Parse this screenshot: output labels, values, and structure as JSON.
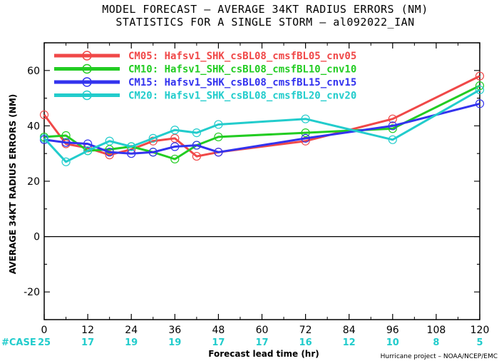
{
  "chart_data": {
    "type": "line",
    "title_line1": "MODEL FORECAST – AVERAGE 34KT RADIUS ERRORS (NM)",
    "title_line2": "STATISTICS FOR A SINGLE STORM – al092022_IAN",
    "xlabel": "Forecast lead time (hr)",
    "ylabel": "AVERAGE 34KT RADIUS ERRORS (NM)",
    "xlim": [
      0,
      120
    ],
    "ylim": [
      -30,
      70
    ],
    "x_ticks": [
      0,
      12,
      24,
      36,
      48,
      60,
      72,
      84,
      96,
      108,
      120
    ],
    "y_ticks": [
      -20,
      0,
      20,
      40,
      60
    ],
    "case_label": "#CASE",
    "case_counts": [
      25,
      17,
      19,
      19,
      17,
      17,
      16,
      12,
      10,
      8,
      5
    ],
    "credit": "Hurricane project – NOAA/NCEP/EMC",
    "legend_position": "top-left",
    "series": [
      {
        "name": "CM05: Hafsv1_SHK_csBL08_cmsfBL05_cnv05",
        "color": "#f04848",
        "x": [
          0,
          6,
          12,
          18,
          24,
          30,
          36,
          42,
          48,
          72,
          96,
          120
        ],
        "y": [
          44,
          33.5,
          32,
          29.5,
          31.5,
          34.5,
          35.5,
          29,
          30.5,
          34.5,
          42.5,
          58
        ]
      },
      {
        "name": "CM10: Hafsv1_SHK_csBL08_cmsfBL10_cnv10",
        "color": "#22cc22",
        "x": [
          0,
          6,
          12,
          18,
          24,
          30,
          36,
          42,
          48,
          72,
          96,
          120
        ],
        "y": [
          36,
          36.5,
          31,
          31.5,
          32.5,
          30.5,
          28,
          33,
          36,
          37.5,
          39,
          54.5
        ]
      },
      {
        "name": "CM15: Hafsv1_SHK_csBL08_cmsfBL15_cnv15",
        "color": "#3333ee",
        "x": [
          0,
          6,
          12,
          18,
          24,
          30,
          36,
          42,
          48,
          72,
          96,
          120
        ],
        "y": [
          35,
          34,
          33.5,
          30.5,
          30,
          30.5,
          32.5,
          33,
          30.5,
          35.5,
          40,
          48
        ]
      },
      {
        "name": "CM20: Hafsv1_SHK_csBL08_cmsfBL20_cnv20",
        "color": "#22cccc",
        "x": [
          0,
          6,
          12,
          18,
          24,
          30,
          36,
          42,
          48,
          72,
          96,
          120
        ],
        "y": [
          35.5,
          27,
          31,
          34.5,
          32.5,
          35.5,
          38.5,
          37.5,
          40.5,
          42.5,
          35,
          53
        ]
      }
    ]
  }
}
